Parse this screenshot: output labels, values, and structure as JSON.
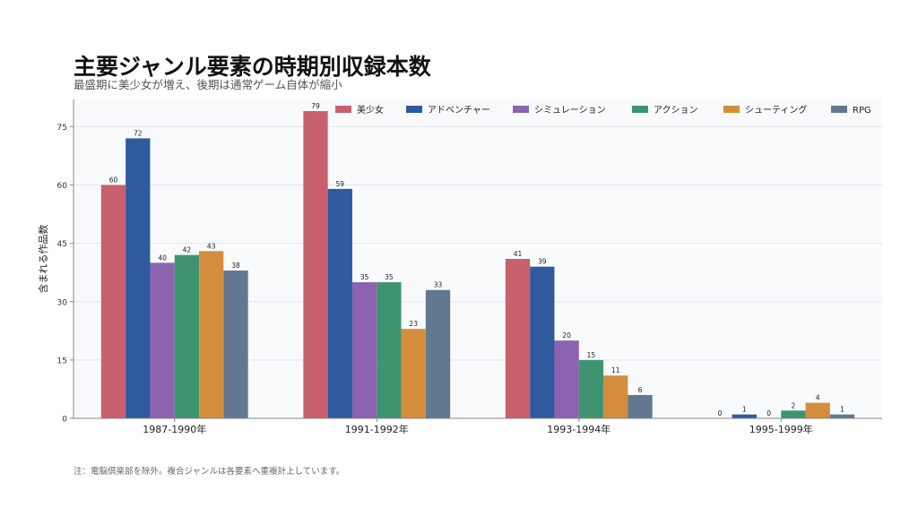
{
  "title": "主要ジャンル要素の時期別収録本数",
  "subtitle": "最盛期に美少女が増え、後期は通常ゲーム自体が縮小",
  "note": "注：電脳倶楽部を除外。複合ジャンルは各要素へ重複計上しています。",
  "chart_data": {
    "type": "bar",
    "title": "主要ジャンル要素の時期別収録本数",
    "subtitle": "最盛期に美少女が増え、後期は通常ゲーム自体が縮小",
    "xlabel": "",
    "ylabel": "含まれる作品数",
    "ylim": [
      0,
      82
    ],
    "yticks": [
      0,
      15,
      30,
      45,
      60,
      75
    ],
    "grid": true,
    "legend_position": "top-right",
    "categories": [
      "1987-1990年",
      "1991-1992年",
      "1993-1994年",
      "1995-1999年"
    ],
    "series": [
      {
        "name": "美少女",
        "color": "#c9606e",
        "values": [
          60,
          79,
          41,
          0
        ]
      },
      {
        "name": "アドベンチャー",
        "color": "#2f5a9e",
        "values": [
          72,
          59,
          39,
          1
        ]
      },
      {
        "name": "シミュレーション",
        "color": "#8c63b0",
        "values": [
          40,
          35,
          20,
          0
        ]
      },
      {
        "name": "アクション",
        "color": "#3f9470",
        "values": [
          42,
          35,
          15,
          2
        ]
      },
      {
        "name": "シューティング",
        "color": "#d48d3c",
        "values": [
          43,
          23,
          11,
          4
        ]
      },
      {
        "name": "RPG",
        "color": "#627891",
        "values": [
          38,
          33,
          6,
          1
        ]
      }
    ]
  }
}
